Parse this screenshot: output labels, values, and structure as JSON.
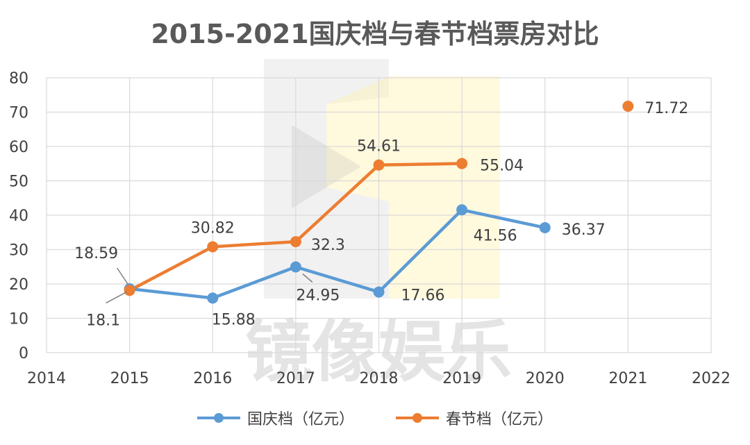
{
  "chart_data": {
    "type": "line",
    "title": "2015-2021国庆档与春节档票房对比",
    "xlabel": "",
    "ylabel": "",
    "xlim": [
      2014,
      2022
    ],
    "ylim": [
      0,
      80
    ],
    "x_ticks": [
      "2014",
      "2015",
      "2016",
      "2017",
      "2018",
      "2019",
      "2020",
      "2021",
      "2022"
    ],
    "y_ticks": [
      "0",
      "10",
      "20",
      "30",
      "40",
      "50",
      "60",
      "70",
      "80"
    ],
    "grid": true,
    "legend_position": "bottom",
    "series": [
      {
        "name": "国庆档（亿元）",
        "color": "#5b9bd5",
        "x": [
          2015,
          2016,
          2017,
          2018,
          2019,
          2020
        ],
        "values": [
          18.59,
          15.88,
          24.95,
          17.66,
          41.56,
          36.37
        ],
        "labels": [
          "18.59",
          "15.88",
          "24.95",
          "17.66",
          "41.56",
          "36.37"
        ]
      },
      {
        "name": "春节档（亿元）",
        "color": "#ed7d31",
        "x": [
          2015,
          2016,
          2017,
          2018,
          2019,
          2021
        ],
        "values": [
          18.1,
          30.82,
          32.3,
          54.61,
          55.04,
          71.72
        ],
        "labels": [
          "18.1",
          "30.82",
          "32.3",
          "54.61",
          "55.04",
          "71.72"
        ],
        "line_segments": [
          [
            0,
            4
          ]
        ]
      }
    ]
  },
  "watermark": {
    "text": "镜像娱乐"
  }
}
